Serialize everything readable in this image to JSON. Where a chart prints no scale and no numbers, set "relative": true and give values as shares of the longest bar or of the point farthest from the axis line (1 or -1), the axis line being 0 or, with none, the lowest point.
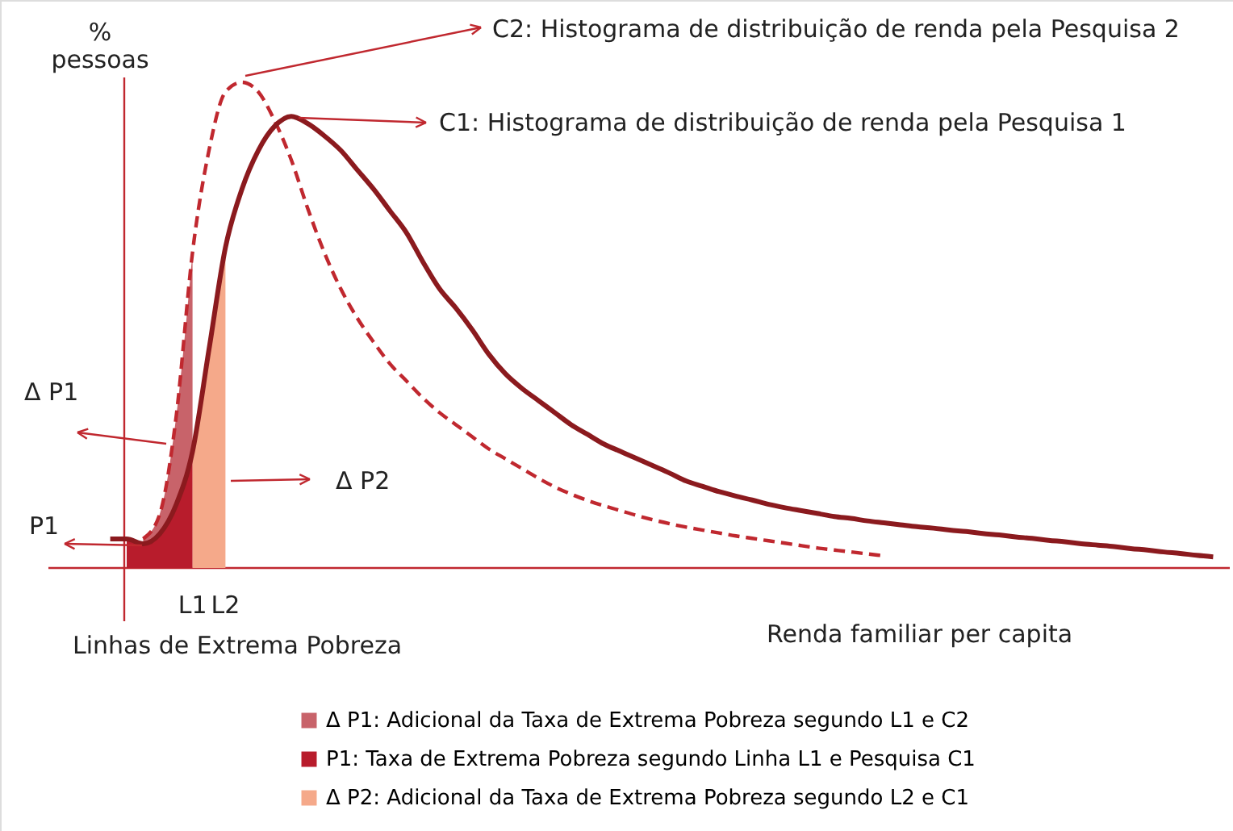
{
  "chart_data": {
    "type": "line",
    "relative": true,
    "ylabel": "% pessoas",
    "xlabel": "Renda familiar per capita",
    "categories": [
      null,
      null,
      null,
      null,
      null,
      "L1",
      null,
      "L2",
      null,
      null,
      null,
      null,
      null,
      null,
      null,
      null,
      null,
      null,
      null,
      null,
      null,
      null,
      null,
      null,
      null,
      null,
      null,
      null,
      null,
      null,
      null,
      null,
      null,
      null,
      null,
      null,
      null,
      null,
      null,
      null,
      null,
      null,
      null,
      null,
      null,
      null,
      null,
      null,
      null,
      null,
      null,
      null,
      null,
      null,
      null,
      null,
      null,
      null,
      null,
      null,
      null,
      null,
      null,
      null,
      null,
      null,
      null,
      null
    ],
    "series": [
      {
        "type": "area",
        "name": "Δ P1: Adicional da Taxa de Extrema Pobreza segundo L1 e C2",
        "color": "#c8636a",
        "values": [
          null,
          null,
          0.06,
          0.11,
          0.31,
          0.65,
          null,
          null,
          null,
          null,
          null,
          null,
          null,
          null,
          null,
          null,
          null,
          null,
          null,
          null,
          null,
          null,
          null,
          null,
          null,
          null,
          null,
          null,
          null,
          null,
          null,
          null,
          null,
          null,
          null,
          null,
          null,
          null,
          null,
          null,
          null,
          null,
          null,
          null,
          null,
          null,
          null,
          null,
          null,
          null,
          null,
          null,
          null,
          null,
          null,
          null,
          null,
          null,
          null,
          null,
          null,
          null,
          null,
          null,
          null,
          null,
          null,
          null
        ]
      },
      {
        "type": "area",
        "name": "P1: Taxa de Extrema Pobreza segundo Linha L1 e Pesquisa C1",
        "color": "#b81c2c",
        "values": [
          null,
          0.06,
          0.05,
          0.07,
          0.13,
          0.24,
          null,
          null,
          null,
          null,
          null,
          null,
          null,
          null,
          null,
          null,
          null,
          null,
          null,
          null,
          null,
          null,
          null,
          null,
          null,
          null,
          null,
          null,
          null,
          null,
          null,
          null,
          null,
          null,
          null,
          null,
          null,
          null,
          null,
          null,
          null,
          null,
          null,
          null,
          null,
          null,
          null,
          null,
          null,
          null,
          null,
          null,
          null,
          null,
          null,
          null,
          null,
          null,
          null,
          null,
          null,
          null,
          null,
          null,
          null,
          null,
          null,
          null
        ]
      },
      {
        "type": "area",
        "name": "Δ P2: Adicional da Taxa de Extrema Pobreza segundo L2 e C1",
        "color": "#f5a98a",
        "values": [
          null,
          null,
          null,
          null,
          null,
          0.24,
          0.45,
          0.66,
          null,
          null,
          null,
          null,
          null,
          null,
          null,
          null,
          null,
          null,
          null,
          null,
          null,
          null,
          null,
          null,
          null,
          null,
          null,
          null,
          null,
          null,
          null,
          null,
          null,
          null,
          null,
          null,
          null,
          null,
          null,
          null,
          null,
          null,
          null,
          null,
          null,
          null,
          null,
          null,
          null,
          null,
          null,
          null,
          null,
          null,
          null,
          null,
          null,
          null,
          null,
          null,
          null,
          null,
          null,
          null,
          null,
          null,
          null,
          null
        ]
      },
      {
        "line_style": "dashed",
        "color": "#c0282f",
        "values": [
          null,
          null,
          0.06,
          0.11,
          0.31,
          0.65,
          0.86,
          0.98,
          1.0,
          0.98,
          0.92,
          0.84,
          0.74,
          0.65,
          0.575,
          0.515,
          0.465,
          0.42,
          0.385,
          0.35,
          0.32,
          0.295,
          0.27,
          0.245,
          0.225,
          0.205,
          0.185,
          0.167,
          0.152,
          0.139,
          0.128,
          0.118,
          0.108,
          0.099,
          0.091,
          0.084,
          0.078,
          0.072,
          0.066,
          0.061,
          0.056,
          0.051,
          0.046,
          0.041,
          0.037,
          0.033,
          0.029,
          0.025,
          null,
          null,
          null,
          null,
          null,
          null,
          null,
          null,
          null,
          null,
          null,
          null,
          null,
          null,
          null,
          null,
          null,
          null,
          null,
          null
        ]
      },
      {
        "line_style": "solid",
        "color": "#8b1a1e",
        "values": [
          0.06,
          0.06,
          0.05,
          0.07,
          0.13,
          0.24,
          0.45,
          0.66,
          0.78,
          0.86,
          0.91,
          0.93,
          0.915,
          0.89,
          0.86,
          0.82,
          0.78,
          0.735,
          0.69,
          0.63,
          0.575,
          0.535,
          0.49,
          0.44,
          0.4,
          0.37,
          0.345,
          0.32,
          0.295,
          0.275,
          0.255,
          0.24,
          0.225,
          0.21,
          0.195,
          0.179,
          0.168,
          0.157,
          0.148,
          0.14,
          0.131,
          0.124,
          0.118,
          0.112,
          0.106,
          0.102,
          0.097,
          0.093,
          0.089,
          0.085,
          0.082,
          0.078,
          0.075,
          0.071,
          0.068,
          0.064,
          0.061,
          0.057,
          0.054,
          0.05,
          0.047,
          0.044,
          0.04,
          0.037,
          0.033,
          0.03,
          0.026,
          0.023
        ]
      }
    ],
    "annotations": [
      "C2: Histograma de distribuição de renda pela Pesquisa 2",
      "C1: Histograma de distribuição de renda pela Pesquisa 1",
      "Δ P1",
      "Δ P2",
      "P1",
      "Linhas de Extrema Pobreza"
    ],
    "legend": "bottom",
    "marker": "none"
  }
}
